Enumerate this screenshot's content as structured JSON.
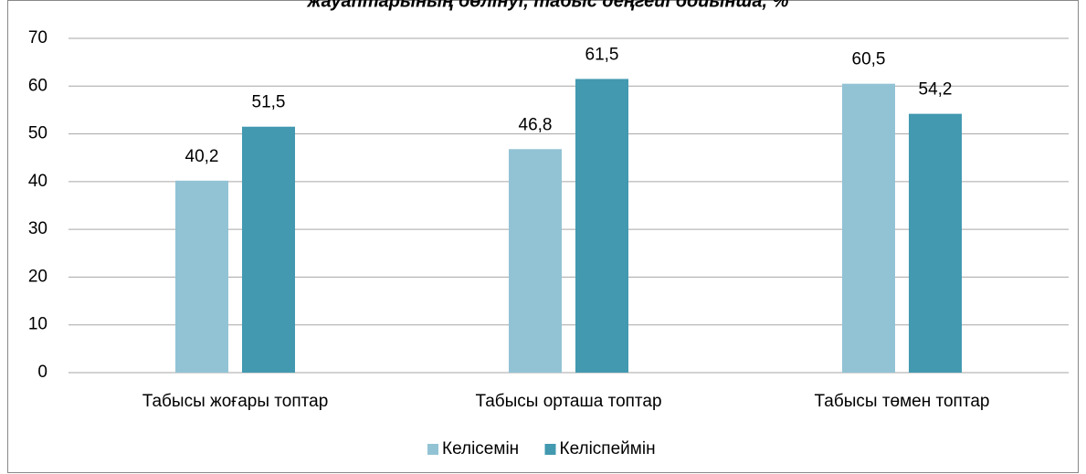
{
  "chart_data": {
    "type": "bar",
    "title": "жауаптарының бөлінуі, табыс деңгейі бойынша, %",
    "categories": [
      "Табысы жоғары топтар",
      "Табысы орташа топтар",
      "Табысы төмен топтар"
    ],
    "series": [
      {
        "name": "Келісемін",
        "color": "#92c3d4",
        "values": [
          40.2,
          46.8,
          60.5
        ],
        "value_labels": [
          "40,2",
          "46,8",
          "60,5"
        ]
      },
      {
        "name": "Келіспеймін",
        "color": "#4299b0",
        "values": [
          51.5,
          61.5,
          54.2
        ],
        "value_labels": [
          "51,5",
          "61,5",
          "54,2"
        ]
      }
    ],
    "ylim": [
      0,
      70
    ],
    "yticks": [
      0,
      10,
      20,
      30,
      40,
      50,
      60,
      70
    ],
    "grid": true,
    "legend": "bottom"
  }
}
